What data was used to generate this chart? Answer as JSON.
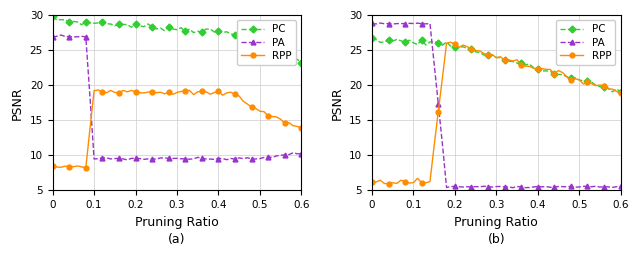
{
  "fig_width": 6.4,
  "fig_height": 2.76,
  "dpi": 100,
  "subplot_a": {
    "xlabel": "Pruning Ratio",
    "ylabel": "PSNR",
    "xlim": [
      0,
      0.6
    ],
    "ylim": [
      5,
      30
    ],
    "yticks": [
      5,
      10,
      15,
      20,
      25,
      30
    ],
    "xticks": [
      0,
      0.1,
      0.2,
      0.3,
      0.4,
      0.5,
      0.6
    ],
    "label_a": "(a)"
  },
  "subplot_b": {
    "xlabel": "Pruning Ratio",
    "ylabel": "PSNR",
    "xlim": [
      0,
      0.6
    ],
    "ylim": [
      5,
      30
    ],
    "yticks": [
      5,
      10,
      15,
      20,
      25,
      30
    ],
    "xticks": [
      0,
      0.1,
      0.2,
      0.3,
      0.4,
      0.5,
      0.6
    ],
    "label_b": "(b)"
  },
  "PC_color": "#33cc33",
  "PA_color": "#9933cc",
  "RPP_color": "#ff8c00",
  "legend_labels": [
    "PC",
    "PA",
    "RPP"
  ],
  "background_color": "#f5f5f5"
}
